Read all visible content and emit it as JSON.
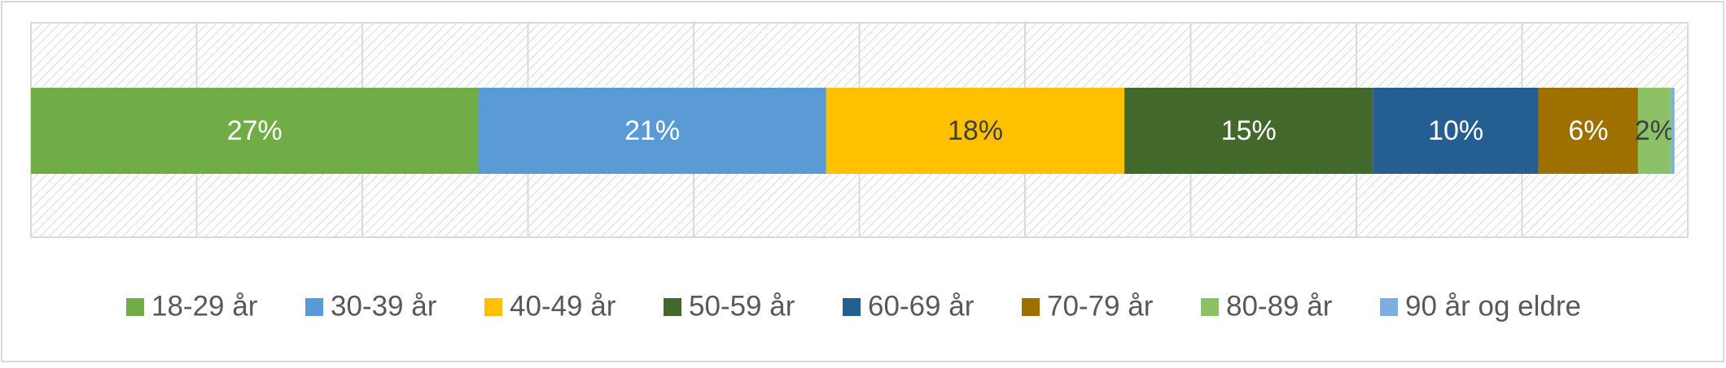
{
  "chart_data": {
    "type": "stacked-bar-horizontal",
    "series": [
      {
        "name": "18-29 år",
        "color": "#70ad47",
        "values": [
          27
        ],
        "value_labels": [
          "27%"
        ]
      },
      {
        "name": "30-39 år",
        "color": "#5b9bd5",
        "values": [
          21
        ],
        "value_labels": [
          "21%"
        ]
      },
      {
        "name": "40-49 år",
        "color": "#ffc000",
        "values": [
          18
        ],
        "value_labels": [
          "18%"
        ]
      },
      {
        "name": "50-59 år",
        "color": "#43682b",
        "values": [
          15
        ],
        "value_labels": [
          "15%"
        ]
      },
      {
        "name": "60-69 år",
        "color": "#255e91",
        "values": [
          10
        ],
        "value_labels": [
          "10%"
        ]
      },
      {
        "name": "70-79 år",
        "color": "#9e7000",
        "values": [
          6
        ],
        "value_labels": [
          "6%"
        ]
      },
      {
        "name": "80-89 år",
        "color": "#8cc168",
        "values": [
          2
        ],
        "value_labels": [
          "2%"
        ]
      },
      {
        "name": "90 år og eldre",
        "color": "#7cafdd",
        "values": [
          0.2
        ],
        "value_labels": [
          null
        ]
      }
    ],
    "xlim": [
      0,
      100
    ],
    "xticks": [
      0,
      10,
      20,
      30,
      40,
      50,
      60,
      70,
      80,
      90,
      100
    ],
    "grid": true,
    "legend": "bottom"
  }
}
